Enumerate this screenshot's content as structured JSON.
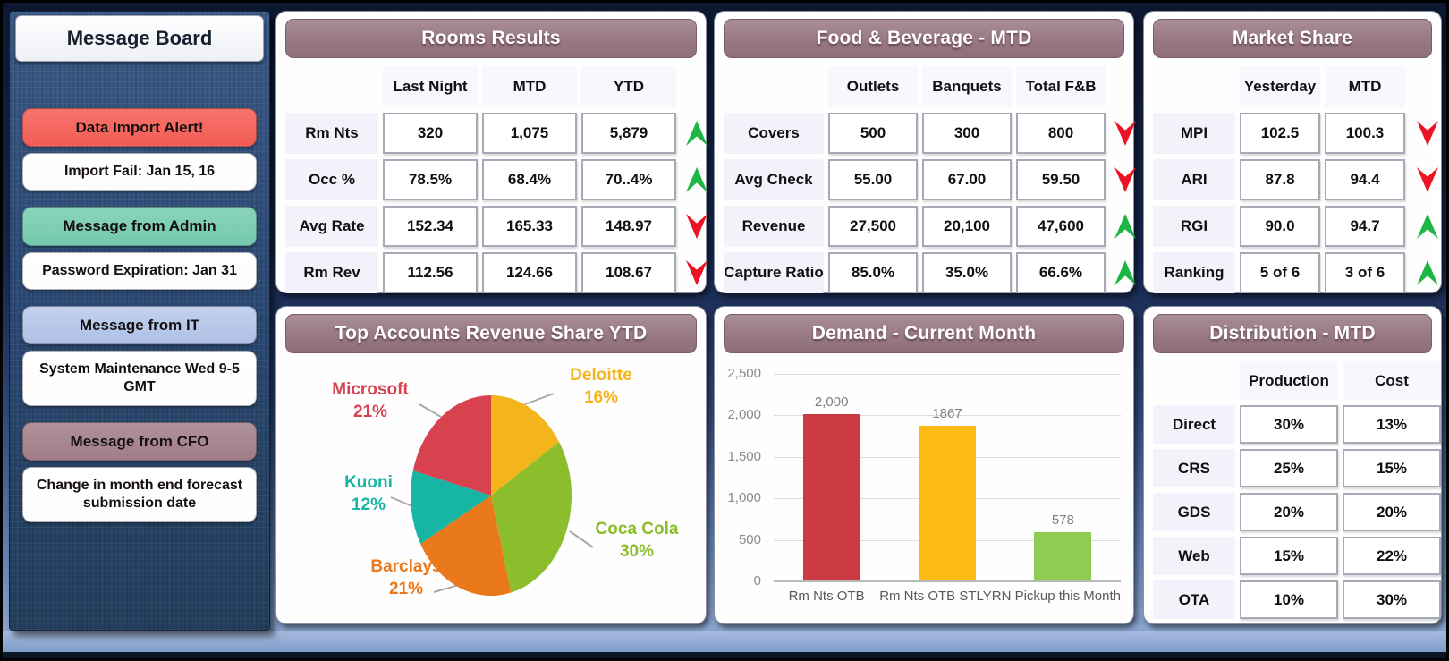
{
  "sidebar": {
    "title": "Message Board",
    "messages": [
      {
        "id": "data-import-alert",
        "label": "Data Import Alert!",
        "type": "alert"
      },
      {
        "id": "import-fail",
        "label": "Import Fail: Jan 15, 16",
        "type": "detail"
      },
      {
        "id": "message-from-admin",
        "label": "Message from Admin",
        "type": "admin"
      },
      {
        "id": "password-expiration",
        "label": "Password Expiration: Jan 31",
        "type": "detail"
      },
      {
        "id": "message-from-it",
        "label": "Message from IT",
        "type": "it"
      },
      {
        "id": "system-maintenance",
        "label": "System Maintenance Wed 9-5 GMT",
        "type": "detail"
      },
      {
        "id": "message-from-cfo",
        "label": "Message from CFO",
        "type": "cfo"
      },
      {
        "id": "forecast-change",
        "label": "Change in month end forecast submission date",
        "type": "detail"
      }
    ]
  },
  "panels": {
    "rooms": {
      "title": "Rooms Results",
      "columns": [
        "Last Night",
        "MTD",
        "YTD"
      ],
      "rows": [
        {
          "label": "Rm Nts",
          "values": [
            "320",
            "1,075",
            "5,879"
          ],
          "trend": "up"
        },
        {
          "label": "Occ %",
          "values": [
            "78.5%",
            "68.4%",
            "70..4%"
          ],
          "trend": "up"
        },
        {
          "label": "Avg Rate",
          "values": [
            "152.34",
            "165.33",
            "148.97"
          ],
          "trend": "down"
        },
        {
          "label": "Rm Rev",
          "values": [
            "112.56",
            "124.66",
            "108.67"
          ],
          "trend": "down"
        }
      ]
    },
    "fnb": {
      "title": "Food & Beverage - MTD",
      "columns": [
        "Outlets",
        "Banquets",
        "Total F&B"
      ],
      "rows": [
        {
          "label": "Covers",
          "values": [
            "500",
            "300",
            "800"
          ],
          "trend": "down"
        },
        {
          "label": "Avg Check",
          "values": [
            "55.00",
            "67.00",
            "59.50"
          ],
          "trend": "down"
        },
        {
          "label": "Revenue",
          "values": [
            "27,500",
            "20,100",
            "47,600"
          ],
          "trend": "up"
        },
        {
          "label": "Capture Ratio",
          "values": [
            "85.0%",
            "35.0%",
            "66.6%"
          ],
          "trend": "up"
        }
      ]
    },
    "market": {
      "title": "Market Share",
      "columns": [
        "Yesterday",
        "MTD"
      ],
      "rows": [
        {
          "label": "MPI",
          "values": [
            "102.5",
            "100.3"
          ],
          "trend": "down"
        },
        {
          "label": "ARI",
          "values": [
            "87.8",
            "94.4"
          ],
          "trend": "down"
        },
        {
          "label": "RGI",
          "values": [
            "90.0",
            "94.7"
          ],
          "trend": "up"
        },
        {
          "label": "Ranking",
          "values": [
            "5 of 6",
            "3 of 6"
          ],
          "trend": "up"
        }
      ]
    },
    "distribution": {
      "title": "Distribution - MTD",
      "columns": [
        "Production",
        "Cost"
      ],
      "rows": [
        {
          "label": "Direct",
          "values": [
            "30%",
            "13%"
          ]
        },
        {
          "label": "CRS",
          "values": [
            "25%",
            "15%"
          ]
        },
        {
          "label": "GDS",
          "values": [
            "20%",
            "20%"
          ]
        },
        {
          "label": "Web",
          "values": [
            "15%",
            "22%"
          ]
        },
        {
          "label": "OTA",
          "values": [
            "10%",
            "30%"
          ]
        }
      ]
    }
  },
  "chart_data": [
    {
      "type": "pie",
      "title": "Top Accounts Revenue Share YTD",
      "start_angle_deg": 0,
      "direction": "clockwise",
      "slices": [
        {
          "name": "Deloitte",
          "pct": "16%",
          "value": 16,
          "color": "#f3b51b"
        },
        {
          "name": "Coca Cola",
          "pct": "30%",
          "value": 30,
          "color": "#8cbd2d"
        },
        {
          "name": "Barclays",
          "pct": "21%",
          "value": 21,
          "color": "#ea791c"
        },
        {
          "name": "Kuoni",
          "pct": "12%",
          "value": 12,
          "color": "#17b5a4"
        },
        {
          "name": "Microsoft",
          "pct": "21%",
          "value": 21,
          "color": "#d8414e"
        }
      ]
    },
    {
      "type": "bar",
      "title": "Demand - Current Month",
      "categories": [
        "Rm Nts OTB",
        "Rm Nts OTB STLY",
        "RN Pickup this Month"
      ],
      "values": [
        2000,
        1867,
        578
      ],
      "value_labels": [
        "2,000",
        "1867",
        "578"
      ],
      "colors": [
        "#cc3b44",
        "#fdba12",
        "#8ecc52"
      ],
      "ylim": [
        0,
        2500
      ],
      "ytick_step": 500,
      "yticks": [
        "0",
        "500",
        "1,000",
        "1,500",
        "2,000",
        "2,500"
      ],
      "grid": true,
      "legend": "none"
    }
  ],
  "colors": {
    "panel_header": "#977784",
    "trend_up": "#1db544",
    "trend_down": "#ec1324",
    "sidebar_alert": "#f25d55",
    "sidebar_admin": "#74c9ae",
    "sidebar_it": "#aec1e6",
    "sidebar_cfo": "#a07d87"
  }
}
